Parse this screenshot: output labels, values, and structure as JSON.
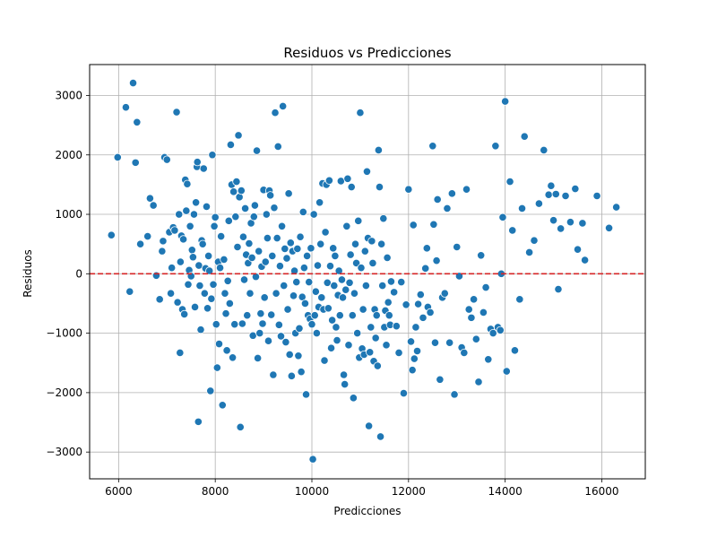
{
  "chart_data": {
    "type": "scatter",
    "title": "Residuos vs Predicciones",
    "xlabel": "Predicciones",
    "ylabel": "Residuos",
    "xlim": [
      5400,
      16900
    ],
    "ylim": [
      -3450,
      3520
    ],
    "x_ticks": [
      6000,
      8000,
      10000,
      12000,
      14000,
      16000
    ],
    "y_ticks": [
      -3000,
      -2000,
      -1000,
      0,
      1000,
      2000,
      3000
    ],
    "grid": true,
    "reference_line": {
      "y": 0,
      "color": "#d62728",
      "style": "dashed"
    },
    "point_color": "#1f77b4",
    "points": [
      [
        5850,
        650
      ],
      [
        5980,
        1960
      ],
      [
        6150,
        2800
      ],
      [
        6230,
        -300
      ],
      [
        6300,
        3210
      ],
      [
        6350,
        1870
      ],
      [
        6380,
        2550
      ],
      [
        6450,
        500
      ],
      [
        6600,
        630
      ],
      [
        6650,
        1270
      ],
      [
        6720,
        1150
      ],
      [
        6780,
        -30
      ],
      [
        6850,
        -430
      ],
      [
        6900,
        380
      ],
      [
        6920,
        550
      ],
      [
        6950,
        1960
      ],
      [
        7000,
        1920
      ],
      [
        7050,
        700
      ],
      [
        7080,
        -330
      ],
      [
        7100,
        100
      ],
      [
        7130,
        780
      ],
      [
        7160,
        730
      ],
      [
        7200,
        2720
      ],
      [
        7220,
        -480
      ],
      [
        7250,
        1000
      ],
      [
        7270,
        -1330
      ],
      [
        7280,
        200
      ],
      [
        7300,
        640
      ],
      [
        7320,
        -600
      ],
      [
        7340,
        580
      ],
      [
        7360,
        -680
      ],
      [
        7380,
        1580
      ],
      [
        7400,
        1060
      ],
      [
        7420,
        1510
      ],
      [
        7440,
        -180
      ],
      [
        7460,
        60
      ],
      [
        7480,
        800
      ],
      [
        7500,
        -40
      ],
      [
        7520,
        400
      ],
      [
        7540,
        280
      ],
      [
        7560,
        1000
      ],
      [
        7580,
        -560
      ],
      [
        7600,
        1200
      ],
      [
        7620,
        1800
      ],
      [
        7630,
        1880
      ],
      [
        7650,
        -2490
      ],
      [
        7660,
        140
      ],
      [
        7680,
        -200
      ],
      [
        7700,
        -940
      ],
      [
        7720,
        560
      ],
      [
        7740,
        500
      ],
      [
        7760,
        1770
      ],
      [
        7780,
        -330
      ],
      [
        7800,
        90
      ],
      [
        7820,
        1130
      ],
      [
        7840,
        -580
      ],
      [
        7860,
        300
      ],
      [
        7880,
        50
      ],
      [
        7900,
        -1970
      ],
      [
        7920,
        -420
      ],
      [
        7940,
        2000
      ],
      [
        7960,
        -180
      ],
      [
        7980,
        800
      ],
      [
        8000,
        950
      ],
      [
        8020,
        -850
      ],
      [
        8040,
        -1580
      ],
      [
        8060,
        200
      ],
      [
        8080,
        -1180
      ],
      [
        8100,
        100
      ],
      [
        8120,
        630
      ],
      [
        8150,
        -2210
      ],
      [
        8180,
        240
      ],
      [
        8200,
        -330
      ],
      [
        8220,
        -670
      ],
      [
        8240,
        -1290
      ],
      [
        8260,
        -120
      ],
      [
        8280,
        890
      ],
      [
        8300,
        -500
      ],
      [
        8320,
        2170
      ],
      [
        8340,
        1500
      ],
      [
        8360,
        -1410
      ],
      [
        8380,
        1380
      ],
      [
        8400,
        -850
      ],
      [
        8420,
        960
      ],
      [
        8440,
        1550
      ],
      [
        8460,
        450
      ],
      [
        8480,
        2330
      ],
      [
        8500,
        1290
      ],
      [
        8520,
        -2580
      ],
      [
        8540,
        1400
      ],
      [
        8560,
        -840
      ],
      [
        8580,
        620
      ],
      [
        8600,
        -100
      ],
      [
        8620,
        1100
      ],
      [
        8640,
        320
      ],
      [
        8660,
        -700
      ],
      [
        8680,
        180
      ],
      [
        8700,
        510
      ],
      [
        8720,
        -330
      ],
      [
        8740,
        850
      ],
      [
        8760,
        270
      ],
      [
        8780,
        -1040
      ],
      [
        8800,
        960
      ],
      [
        8820,
        1150
      ],
      [
        8840,
        -50
      ],
      [
        8860,
        2070
      ],
      [
        8880,
        -1420
      ],
      [
        8900,
        380
      ],
      [
        8920,
        -1000
      ],
      [
        8940,
        -670
      ],
      [
        8960,
        120
      ],
      [
        8980,
        -840
      ],
      [
        9000,
        1410
      ],
      [
        9020,
        -400
      ],
      [
        9040,
        200
      ],
      [
        9060,
        1000
      ],
      [
        9080,
        600
      ],
      [
        9100,
        -1130
      ],
      [
        9120,
        1400
      ],
      [
        9140,
        1320
      ],
      [
        9160,
        -690
      ],
      [
        9180,
        300
      ],
      [
        9200,
        -1700
      ],
      [
        9220,
        1110
      ],
      [
        9240,
        2710
      ],
      [
        9260,
        -330
      ],
      [
        9280,
        600
      ],
      [
        9300,
        2140
      ],
      [
        9320,
        -860
      ],
      [
        9340,
        130
      ],
      [
        9360,
        -1050
      ],
      [
        9380,
        800
      ],
      [
        9400,
        2820
      ],
      [
        9420,
        -200
      ],
      [
        9440,
        420
      ],
      [
        9460,
        -1150
      ],
      [
        9480,
        260
      ],
      [
        9500,
        -600
      ],
      [
        9520,
        1350
      ],
      [
        9540,
        -1360
      ],
      [
        9560,
        520
      ],
      [
        9580,
        -1720
      ],
      [
        9600,
        380
      ],
      [
        9620,
        -370
      ],
      [
        9640,
        50
      ],
      [
        9660,
        -1000
      ],
      [
        9680,
        -140
      ],
      [
        9700,
        420
      ],
      [
        9720,
        -1380
      ],
      [
        9740,
        -920
      ],
      [
        9760,
        620
      ],
      [
        9780,
        -1650
      ],
      [
        9800,
        -390
      ],
      [
        9820,
        1040
      ],
      [
        9840,
        100
      ],
      [
        9860,
        -500
      ],
      [
        9880,
        -2030
      ],
      [
        9900,
        300
      ],
      [
        9920,
        -700
      ],
      [
        9940,
        -140
      ],
      [
        9960,
        -760
      ],
      [
        9980,
        430
      ],
      [
        10000,
        -850
      ],
      [
        10020,
        -3120
      ],
      [
        10040,
        1000
      ],
      [
        10060,
        -700
      ],
      [
        10080,
        -300
      ],
      [
        10100,
        -1000
      ],
      [
        10120,
        140
      ],
      [
        10140,
        -560
      ],
      [
        10160,
        1200
      ],
      [
        10180,
        500
      ],
      [
        10200,
        -400
      ],
      [
        10220,
        1520
      ],
      [
        10240,
        -600
      ],
      [
        10260,
        -1460
      ],
      [
        10280,
        700
      ],
      [
        10300,
        1500
      ],
      [
        10320,
        -150
      ],
      [
        10340,
        -580
      ],
      [
        10360,
        1570
      ],
      [
        10380,
        130
      ],
      [
        10400,
        -1250
      ],
      [
        10420,
        -780
      ],
      [
        10440,
        430
      ],
      [
        10460,
        -200
      ],
      [
        10480,
        300
      ],
      [
        10500,
        -900
      ],
      [
        10520,
        -1120
      ],
      [
        10540,
        -360
      ],
      [
        10560,
        50
      ],
      [
        10580,
        -700
      ],
      [
        10600,
        1560
      ],
      [
        10620,
        -100
      ],
      [
        10640,
        -400
      ],
      [
        10660,
        -1700
      ],
      [
        10680,
        -1860
      ],
      [
        10700,
        -270
      ],
      [
        10720,
        800
      ],
      [
        10740,
        1600
      ],
      [
        10760,
        -1200
      ],
      [
        10780,
        -150
      ],
      [
        10800,
        320
      ],
      [
        10820,
        1460
      ],
      [
        10840,
        -700
      ],
      [
        10860,
        -2090
      ],
      [
        10880,
        -330
      ],
      [
        10900,
        500
      ],
      [
        10920,
        180
      ],
      [
        10940,
        -1000
      ],
      [
        10960,
        890
      ],
      [
        10980,
        -1410
      ],
      [
        11000,
        2710
      ],
      [
        11020,
        100
      ],
      [
        11040,
        -1260
      ],
      [
        11060,
        -600
      ],
      [
        11080,
        -1360
      ],
      [
        11100,
        380
      ],
      [
        11120,
        -200
      ],
      [
        11140,
        1720
      ],
      [
        11160,
        600
      ],
      [
        11180,
        -2560
      ],
      [
        11200,
        -1320
      ],
      [
        11220,
        -900
      ],
      [
        11240,
        550
      ],
      [
        11260,
        180
      ],
      [
        11280,
        -1470
      ],
      [
        11300,
        -600
      ],
      [
        11320,
        -1080
      ],
      [
        11340,
        -700
      ],
      [
        11360,
        -1550
      ],
      [
        11380,
        2080
      ],
      [
        11400,
        1460
      ],
      [
        11420,
        -2740
      ],
      [
        11440,
        500
      ],
      [
        11460,
        -200
      ],
      [
        11480,
        930
      ],
      [
        11500,
        -900
      ],
      [
        11520,
        -620
      ],
      [
        11540,
        -1200
      ],
      [
        11560,
        270
      ],
      [
        11580,
        -480
      ],
      [
        11600,
        -700
      ],
      [
        11620,
        -860
      ],
      [
        11640,
        -130
      ],
      [
        11700,
        -310
      ],
      [
        11750,
        -880
      ],
      [
        11800,
        -1330
      ],
      [
        11850,
        -140
      ],
      [
        11900,
        -2010
      ],
      [
        11950,
        -520
      ],
      [
        12000,
        1420
      ],
      [
        12050,
        -1140
      ],
      [
        12080,
        -1620
      ],
      [
        12100,
        820
      ],
      [
        12120,
        -1430
      ],
      [
        12150,
        -900
      ],
      [
        12180,
        -1300
      ],
      [
        12200,
        -510
      ],
      [
        12250,
        -350
      ],
      [
        12300,
        -740
      ],
      [
        12350,
        90
      ],
      [
        12380,
        430
      ],
      [
        12400,
        -560
      ],
      [
        12450,
        -650
      ],
      [
        12500,
        2150
      ],
      [
        12520,
        830
      ],
      [
        12550,
        -1160
      ],
      [
        12580,
        220
      ],
      [
        12600,
        1250
      ],
      [
        12650,
        -1780
      ],
      [
        12700,
        -400
      ],
      [
        12750,
        -330
      ],
      [
        12800,
        1100
      ],
      [
        12850,
        -1160
      ],
      [
        12900,
        1350
      ],
      [
        12950,
        -2030
      ],
      [
        13000,
        450
      ],
      [
        13050,
        -40
      ],
      [
        13100,
        -1240
      ],
      [
        13150,
        -1330
      ],
      [
        13200,
        1420
      ],
      [
        13250,
        -600
      ],
      [
        13300,
        -740
      ],
      [
        13350,
        -430
      ],
      [
        13400,
        -1100
      ],
      [
        13450,
        -1820
      ],
      [
        13500,
        310
      ],
      [
        13550,
        -650
      ],
      [
        13600,
        -230
      ],
      [
        13650,
        -1440
      ],
      [
        13700,
        -930
      ],
      [
        13750,
        -1000
      ],
      [
        13800,
        2150
      ],
      [
        13850,
        -900
      ],
      [
        13900,
        -950
      ],
      [
        13920,
        0
      ],
      [
        13950,
        950
      ],
      [
        14000,
        2900
      ],
      [
        14030,
        -1640
      ],
      [
        14100,
        1550
      ],
      [
        14150,
        730
      ],
      [
        14200,
        -1290
      ],
      [
        14300,
        -430
      ],
      [
        14350,
        1100
      ],
      [
        14400,
        2310
      ],
      [
        14500,
        360
      ],
      [
        14600,
        560
      ],
      [
        14700,
        1180
      ],
      [
        14800,
        2080
      ],
      [
        14900,
        1330
      ],
      [
        14950,
        1480
      ],
      [
        15000,
        900
      ],
      [
        15050,
        1340
      ],
      [
        15100,
        -260
      ],
      [
        15150,
        760
      ],
      [
        15250,
        1310
      ],
      [
        15350,
        870
      ],
      [
        15450,
        1430
      ],
      [
        15500,
        410
      ],
      [
        15600,
        850
      ],
      [
        15650,
        230
      ],
      [
        15900,
        1310
      ],
      [
        16150,
        770
      ],
      [
        16300,
        1120
      ]
    ]
  }
}
